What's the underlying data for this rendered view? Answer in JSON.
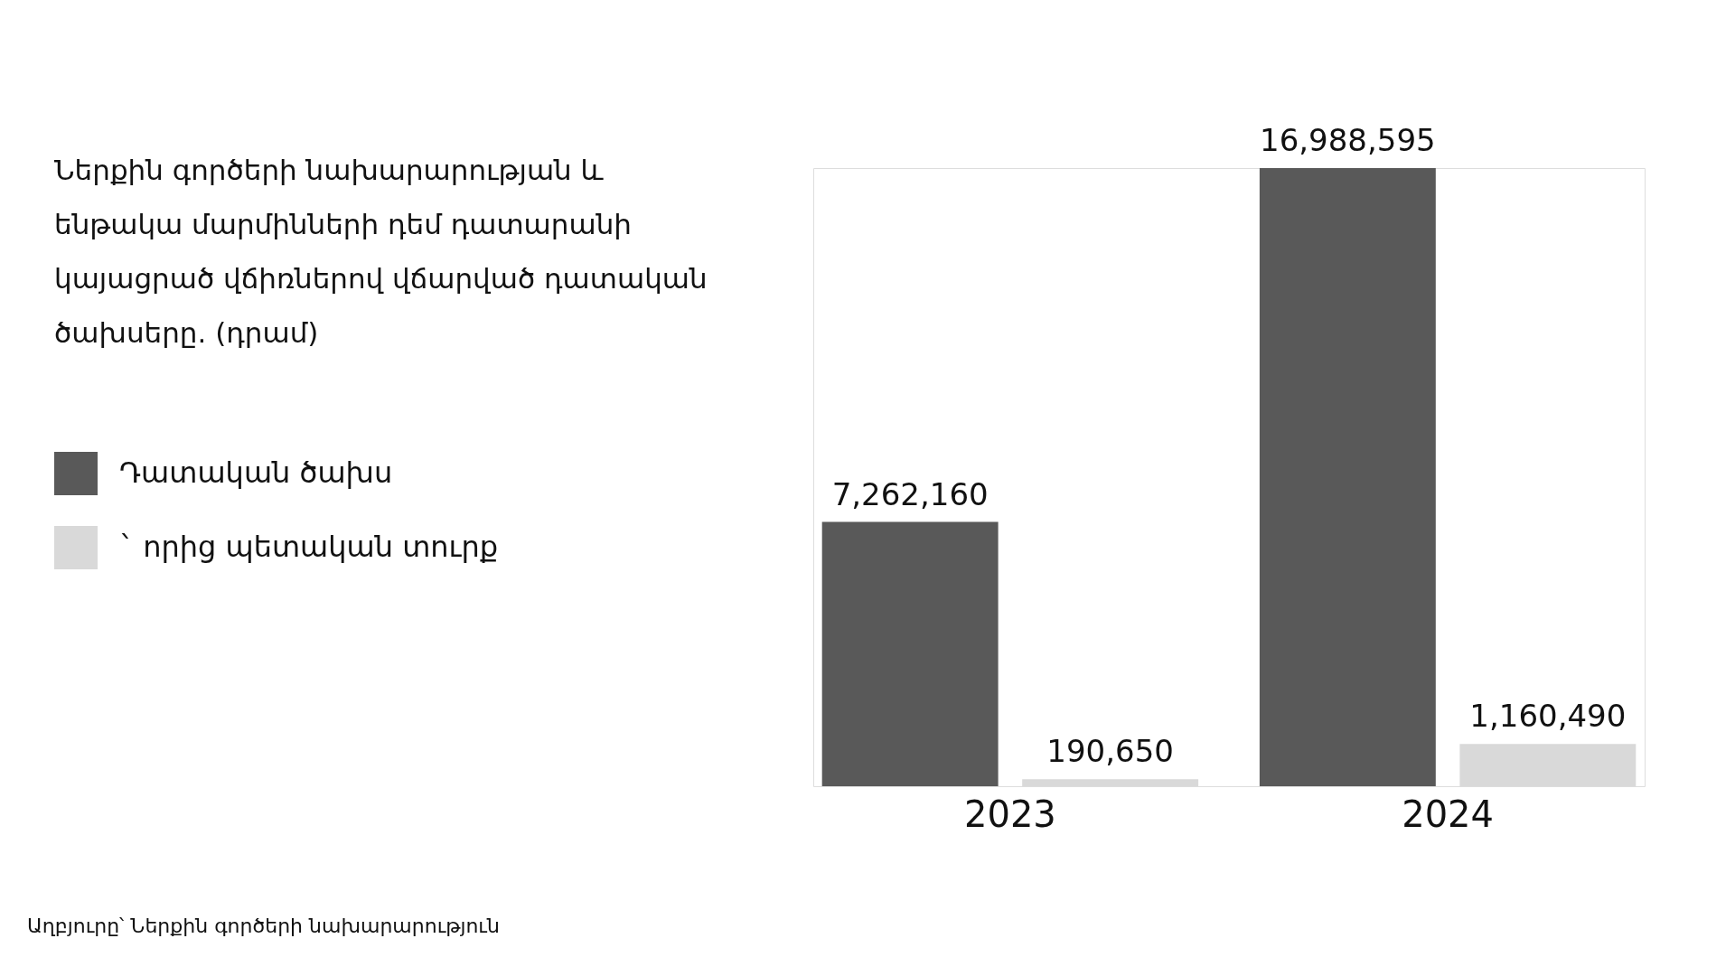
{
  "chart_data": {
    "type": "bar",
    "title": "Ներքին գործերի նախարարության և ենթակա մարմինների դեմ դատարանի կայացրած վճիռներով վճարված դատական ծախսերը. (դրամ)",
    "categories": [
      "2023",
      "2024"
    ],
    "series": [
      {
        "name": "Դատական ծախս",
        "color": "#595959",
        "values": [
          7262160,
          16988595
        ],
        "value_labels": [
          "7,262,160",
          "16,988,595"
        ]
      },
      {
        "name": "` որից պետական տուրք",
        "color": "#d9d9d9",
        "values": [
          190650,
          1160490
        ],
        "value_labels": [
          "190,650",
          "1,160,490"
        ]
      }
    ],
    "legend": "left",
    "annotations": [
      "Աղբյուրը՝ Ներքին գործերի նախարարություն"
    ]
  }
}
